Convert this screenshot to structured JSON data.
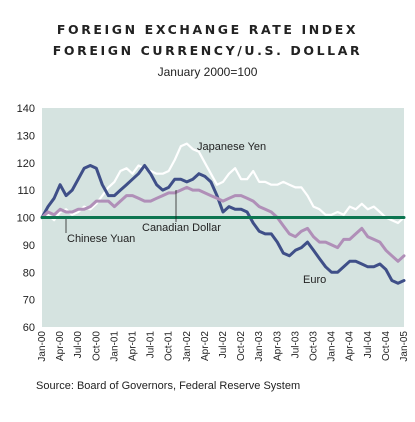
{
  "title_line1": "FOREIGN EXCHANGE RATE INDEX",
  "title_line2": "FOREIGN CURRENCY/U.S. DOLLAR",
  "subtitle": "January 2000=100",
  "source": "Source: Board of Governors, Federal Reserve System",
  "chart_data": {
    "type": "line",
    "plot_background": "#d5e3e0",
    "ylim": [
      60,
      140
    ],
    "yticks": [
      60,
      70,
      80,
      90,
      100,
      110,
      120,
      130,
      140
    ],
    "xlabels": [
      "Jan-00",
      "Apr-00",
      "Jul-00",
      "Oct-00",
      "Jan-01",
      "Apr-01",
      "Jul-01",
      "Oct-01",
      "Jan-02",
      "Apr-02",
      "Jul-02",
      "Oct-02",
      "Jan-03",
      "Apr-03",
      "Jul-03",
      "Oct-03",
      "Jan-04",
      "Apr-04",
      "Jul-04",
      "Oct-04",
      "Jan-05"
    ],
    "x": [
      "Jan-00",
      "Feb-00",
      "Mar-00",
      "Apr-00",
      "May-00",
      "Jun-00",
      "Jul-00",
      "Aug-00",
      "Sep-00",
      "Oct-00",
      "Nov-00",
      "Dec-00",
      "Jan-01",
      "Feb-01",
      "Mar-01",
      "Apr-01",
      "May-01",
      "Jun-01",
      "Jul-01",
      "Aug-01",
      "Sep-01",
      "Oct-01",
      "Nov-01",
      "Dec-01",
      "Jan-02",
      "Feb-02",
      "Mar-02",
      "Apr-02",
      "May-02",
      "Jun-02",
      "Jul-02",
      "Aug-02",
      "Sep-02",
      "Oct-02",
      "Nov-02",
      "Dec-02",
      "Jan-03",
      "Feb-03",
      "Mar-03",
      "Apr-03",
      "May-03",
      "Jun-03",
      "Jul-03",
      "Aug-03",
      "Sep-03",
      "Oct-03",
      "Nov-03",
      "Dec-03",
      "Jan-04",
      "Feb-04",
      "Mar-04",
      "Apr-04",
      "May-04",
      "Jun-04",
      "Jul-04",
      "Aug-04",
      "Sep-04",
      "Oct-04",
      "Nov-04",
      "Dec-04",
      "Jan-05"
    ],
    "series": [
      {
        "name": "Japanese Yen",
        "color": "#ffffff",
        "values": [
          100,
          101,
          99,
          102,
          103,
          101,
          102,
          104,
          103,
          105,
          108,
          111,
          113,
          117,
          118,
          116,
          119,
          118,
          117,
          116,
          116,
          117,
          121,
          126,
          127,
          125,
          124,
          120,
          116,
          112,
          113,
          116,
          118,
          114,
          114,
          117,
          113,
          113,
          112,
          112,
          113,
          112,
          111,
          111,
          108,
          104,
          103,
          101,
          101,
          102,
          101,
          104,
          103,
          105,
          103,
          104,
          102,
          100,
          99,
          98,
          100
        ]
      },
      {
        "name": "Euro",
        "color": "#3f4f88",
        "values": [
          100,
          104,
          107,
          112,
          108,
          110,
          114,
          118,
          119,
          118,
          112,
          108,
          108,
          110,
          112,
          114,
          116,
          119,
          116,
          112,
          110,
          111,
          114,
          114,
          113,
          114,
          116,
          115,
          113,
          108,
          102,
          104,
          103,
          103,
          102,
          98,
          95,
          94,
          94,
          91,
          87,
          86,
          88,
          89,
          91,
          88,
          85,
          82,
          80,
          80,
          82,
          84,
          84,
          83,
          82,
          82,
          83,
          81,
          77,
          76,
          77
        ]
      },
      {
        "name": "Canadian Dollar",
        "color": "#b08fb8",
        "values": [
          100,
          102,
          101,
          103,
          102,
          102,
          103,
          103,
          104,
          106,
          106,
          106,
          104,
          106,
          108,
          108,
          107,
          106,
          106,
          107,
          108,
          109,
          109,
          110,
          111,
          110,
          110,
          109,
          108,
          107,
          106,
          107,
          108,
          108,
          107,
          106,
          104,
          103,
          102,
          100,
          97,
          94,
          93,
          95,
          96,
          93,
          91,
          91,
          90,
          89,
          92,
          92,
          94,
          96,
          93,
          92,
          91,
          88,
          86,
          84,
          86
        ]
      },
      {
        "name": "Chinese Yuan",
        "color": "#0c7550",
        "values": [
          100,
          100,
          100,
          100,
          100,
          100,
          100,
          100,
          100,
          100,
          100,
          100,
          100,
          100,
          100,
          100,
          100,
          100,
          100,
          100,
          100,
          100,
          100,
          100,
          100,
          100,
          100,
          100,
          100,
          100,
          100,
          100,
          100,
          100,
          100,
          100,
          100,
          100,
          100,
          100,
          100,
          100,
          100,
          100,
          100,
          100,
          100,
          100,
          100,
          100,
          100,
          100,
          100,
          100,
          100,
          100,
          100,
          100,
          100,
          100,
          100
        ]
      }
    ]
  }
}
